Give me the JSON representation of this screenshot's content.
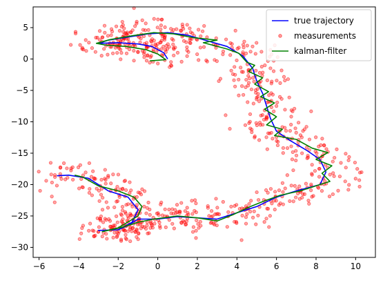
{
  "chart_data": {
    "type": "line",
    "title": "",
    "xlabel": "",
    "ylabel": "",
    "xlim": [
      -6.3,
      11.0
    ],
    "ylim": [
      -31.6,
      8.3
    ],
    "xticks": [
      -6,
      -4,
      -2,
      0,
      2,
      4,
      6,
      8,
      10
    ],
    "yticks": [
      5,
      0,
      -5,
      -10,
      -15,
      -20,
      -25,
      -30
    ],
    "grid": false,
    "legend_position": "top-right",
    "series": [
      {
        "name": "true trajectory",
        "kind": "line",
        "color": "#0000ff",
        "points": [
          [
            0.5,
            0.0
          ],
          [
            0.3,
            1.0
          ],
          [
            -0.3,
            2.0
          ],
          [
            -1.0,
            2.4
          ],
          [
            -2.0,
            2.6
          ],
          [
            -3.0,
            2.5
          ],
          [
            -2.5,
            3.0
          ],
          [
            -1.5,
            3.5
          ],
          [
            -0.5,
            4.0
          ],
          [
            0.5,
            4.2
          ],
          [
            1.5,
            3.8
          ],
          [
            2.5,
            2.9
          ],
          [
            3.5,
            2.0
          ],
          [
            4.3,
            0.5
          ],
          [
            4.8,
            -1.5
          ],
          [
            5.0,
            -3.5
          ],
          [
            5.3,
            -5.5
          ],
          [
            5.5,
            -7.5
          ],
          [
            5.7,
            -9.5
          ],
          [
            6.0,
            -11.5
          ],
          [
            6.7,
            -13.0
          ],
          [
            7.5,
            -14.5
          ],
          [
            8.2,
            -16.0
          ],
          [
            8.5,
            -18.0
          ],
          [
            8.2,
            -20.0
          ],
          [
            7.0,
            -21.0
          ],
          [
            6.0,
            -22.0
          ],
          [
            5.0,
            -23.5
          ],
          [
            4.0,
            -24.5
          ],
          [
            3.0,
            -25.5
          ],
          [
            2.0,
            -25.3
          ],
          [
            1.0,
            -25.1
          ],
          [
            0.0,
            -25.5
          ],
          [
            -1.0,
            -25.5
          ],
          [
            -1.5,
            -26.5
          ],
          [
            -2.0,
            -27.2
          ],
          [
            -3.0,
            -27.3
          ],
          [
            -2.0,
            -27.2
          ],
          [
            -1.3,
            -26.0
          ],
          [
            -1.0,
            -24.0
          ],
          [
            -1.5,
            -22.0
          ],
          [
            -2.5,
            -21.0
          ],
          [
            -3.5,
            -19.0
          ],
          [
            -4.5,
            -18.5
          ],
          [
            -5.1,
            -18.6
          ]
        ]
      },
      {
        "name": "measurements",
        "kind": "scatter",
        "color": "#ff0000"
      },
      {
        "name": "kalman-filter",
        "kind": "line",
        "color": "#008000",
        "points": [
          [
            -0.4,
            -0.3
          ],
          [
            0.4,
            -0.1
          ],
          [
            0.0,
            0.8
          ],
          [
            -0.6,
            1.5
          ],
          [
            -1.6,
            2.0
          ],
          [
            -2.6,
            2.2
          ],
          [
            -3.1,
            2.5
          ],
          [
            -2.4,
            3.1
          ],
          [
            -1.3,
            3.7
          ],
          [
            -0.2,
            4.2
          ],
          [
            0.8,
            4.0
          ],
          [
            1.8,
            3.4
          ],
          [
            3.0,
            3.0
          ],
          [
            2.3,
            2.6
          ],
          [
            3.5,
            1.6
          ],
          [
            4.1,
            0.9
          ],
          [
            4.5,
            -0.5
          ],
          [
            4.9,
            -1.0
          ],
          [
            4.6,
            -2.0
          ],
          [
            5.3,
            -3.0
          ],
          [
            4.9,
            -4.0
          ],
          [
            5.6,
            -5.2
          ],
          [
            5.2,
            -6.0
          ],
          [
            5.9,
            -7.0
          ],
          [
            5.4,
            -8.0
          ],
          [
            6.0,
            -9.2
          ],
          [
            5.5,
            -10.5
          ],
          [
            6.3,
            -11.2
          ],
          [
            5.9,
            -12.2
          ],
          [
            7.0,
            -12.8
          ],
          [
            7.8,
            -14.2
          ],
          [
            8.6,
            -14.9
          ],
          [
            8.0,
            -16.0
          ],
          [
            8.8,
            -17.0
          ],
          [
            8.3,
            -18.2
          ],
          [
            8.7,
            -19.5
          ],
          [
            8.0,
            -20.2
          ],
          [
            7.2,
            -21.0
          ],
          [
            6.2,
            -21.7
          ],
          [
            5.4,
            -22.6
          ],
          [
            4.6,
            -23.6
          ],
          [
            3.8,
            -24.8
          ],
          [
            3.0,
            -25.8
          ],
          [
            2.0,
            -25.3
          ],
          [
            1.0,
            -25.0
          ],
          [
            -0.2,
            -25.5
          ],
          [
            -1.0,
            -26.0
          ],
          [
            -1.8,
            -26.8
          ],
          [
            -2.8,
            -27.5
          ],
          [
            -2.0,
            -26.9
          ],
          [
            -1.0,
            -25.0
          ],
          [
            -0.8,
            -23.5
          ],
          [
            -1.2,
            -22.0
          ],
          [
            -2.0,
            -21.0
          ],
          [
            -3.0,
            -20.2
          ],
          [
            -3.8,
            -18.8
          ],
          [
            -4.2,
            -18.5
          ]
        ]
      }
    ]
  }
}
